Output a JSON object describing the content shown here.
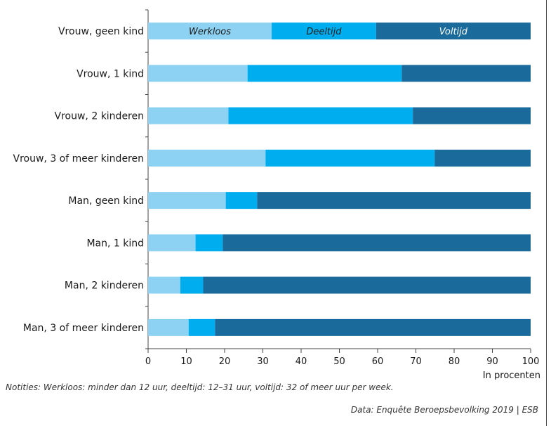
{
  "chart_data": {
    "type": "bar",
    "orientation": "horizontal",
    "stacked": true,
    "categories": [
      "Vrouw, geen kind",
      "Vrouw, 1 kind",
      "Vrouw, 2 kinderen",
      "Vrouw, 3 of meer kinderen",
      "Man, geen kind",
      "Man, 1 kind",
      "Man, 2 kinderen",
      "Man, 3 of meer kinderen"
    ],
    "series": [
      {
        "name": "Werkloos",
        "color": "#8ed2f3",
        "label_color": "#1a1a1a",
        "values": [
          32.3,
          26.0,
          21.0,
          30.7,
          20.3,
          12.4,
          8.4,
          10.6
        ]
      },
      {
        "name": "Deeltijd",
        "color": "#00aeef",
        "label_color": "#1a1a1a",
        "values": [
          27.3,
          40.3,
          48.2,
          44.2,
          8.2,
          7.1,
          6.0,
          6.9
        ]
      },
      {
        "name": "Voltijd",
        "color": "#1a6a9c",
        "label_color": "#ffffff",
        "values": [
          40.4,
          33.7,
          30.8,
          25.1,
          71.5,
          80.5,
          85.6,
          82.5
        ]
      }
    ],
    "series_labels_on_row": 0,
    "xlim": [
      0,
      100
    ],
    "xticks": [
      "0",
      "10",
      "20",
      "30",
      "40",
      "50",
      "60",
      "70",
      "80",
      "90",
      "100"
    ],
    "xlabel": "In procenten",
    "grid": false
  },
  "note": "Notities: Werkloos: minder dan 12 uur, deeltijd: 12–31 uur, voltijd: 32 of meer uur per week.",
  "source": "Data: Enquête Beroepsbevolking 2019  | ESB"
}
